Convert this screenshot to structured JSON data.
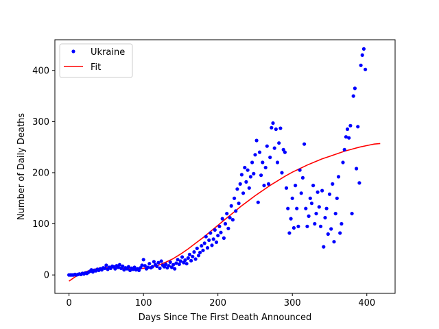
{
  "chart_data": {
    "type": "scatter",
    "title": "",
    "xlabel": "Days Since The First Death Announced",
    "ylabel": "Number of Daily Deaths",
    "xlim": [
      -19,
      438
    ],
    "ylim": [
      -36,
      460
    ],
    "xticks": [
      0,
      100,
      200,
      300,
      400
    ],
    "yticks": [
      0,
      100,
      200,
      300,
      400
    ],
    "grid": false,
    "legend_position": "top-left",
    "series": [
      {
        "name": "Ukraine",
        "kind": "scatter",
        "color": "#0000ff",
        "points": [
          [
            0,
            0
          ],
          [
            2,
            0
          ],
          [
            4,
            0
          ],
          [
            6,
            0
          ],
          [
            8,
            1
          ],
          [
            10,
            0
          ],
          [
            12,
            1
          ],
          [
            14,
            2
          ],
          [
            16,
            1
          ],
          [
            18,
            3
          ],
          [
            20,
            2
          ],
          [
            22,
            4
          ],
          [
            24,
            3
          ],
          [
            26,
            5
          ],
          [
            28,
            7
          ],
          [
            30,
            10
          ],
          [
            32,
            6
          ],
          [
            34,
            9
          ],
          [
            36,
            8
          ],
          [
            38,
            11
          ],
          [
            40,
            9
          ],
          [
            42,
            12
          ],
          [
            44,
            10
          ],
          [
            46,
            14
          ],
          [
            48,
            13
          ],
          [
            50,
            19
          ],
          [
            52,
            11
          ],
          [
            54,
            15
          ],
          [
            56,
            13
          ],
          [
            58,
            17
          ],
          [
            60,
            16
          ],
          [
            62,
            12
          ],
          [
            64,
            18
          ],
          [
            66,
            15
          ],
          [
            68,
            20
          ],
          [
            70,
            13
          ],
          [
            72,
            17
          ],
          [
            74,
            10
          ],
          [
            76,
            14
          ],
          [
            78,
            12
          ],
          [
            80,
            16
          ],
          [
            82,
            9
          ],
          [
            84,
            13
          ],
          [
            86,
            11
          ],
          [
            88,
            15
          ],
          [
            90,
            10
          ],
          [
            92,
            12
          ],
          [
            94,
            9
          ],
          [
            96,
            14
          ],
          [
            98,
            19
          ],
          [
            100,
            30
          ],
          [
            102,
            18
          ],
          [
            104,
            12
          ],
          [
            106,
            15
          ],
          [
            108,
            22
          ],
          [
            110,
            14
          ],
          [
            112,
            16
          ],
          [
            114,
            26
          ],
          [
            116,
            20
          ],
          [
            118,
            17
          ],
          [
            120,
            24
          ],
          [
            122,
            13
          ],
          [
            124,
            27
          ],
          [
            126,
            19
          ],
          [
            128,
            16
          ],
          [
            130,
            21
          ],
          [
            132,
            14
          ],
          [
            134,
            18
          ],
          [
            136,
            25
          ],
          [
            138,
            15
          ],
          [
            140,
            20
          ],
          [
            142,
            12
          ],
          [
            144,
            23
          ],
          [
            146,
            30
          ],
          [
            148,
            21
          ],
          [
            150,
            27
          ],
          [
            152,
            35
          ],
          [
            154,
            24
          ],
          [
            156,
            29
          ],
          [
            158,
            22
          ],
          [
            160,
            33
          ],
          [
            162,
            40
          ],
          [
            164,
            28
          ],
          [
            166,
            36
          ],
          [
            168,
            45
          ],
          [
            170,
            31
          ],
          [
            172,
            52
          ],
          [
            174,
            38
          ],
          [
            176,
            44
          ],
          [
            178,
            57
          ],
          [
            180,
            48
          ],
          [
            182,
            62
          ],
          [
            184,
            75
          ],
          [
            186,
            53
          ],
          [
            188,
            68
          ],
          [
            190,
            82
          ],
          [
            192,
            58
          ],
          [
            194,
            70
          ],
          [
            196,
            88
          ],
          [
            198,
            64
          ],
          [
            200,
            77
          ],
          [
            202,
            95
          ],
          [
            204,
            83
          ],
          [
            206,
            110
          ],
          [
            208,
            72
          ],
          [
            210,
            100
          ],
          [
            212,
            120
          ],
          [
            214,
            91
          ],
          [
            216,
            112
          ],
          [
            218,
            135
          ],
          [
            220,
            108
          ],
          [
            222,
            150
          ],
          [
            224,
            125
          ],
          [
            226,
            168
          ],
          [
            228,
            140
          ],
          [
            230,
            178
          ],
          [
            232,
            196
          ],
          [
            234,
            160
          ],
          [
            236,
            210
          ],
          [
            238,
            182
          ],
          [
            240,
            205
          ],
          [
            242,
            170
          ],
          [
            244,
            192
          ],
          [
            246,
            220
          ],
          [
            248,
            198
          ],
          [
            250,
            235
          ],
          [
            252,
            263
          ],
          [
            254,
            142
          ],
          [
            256,
            240
          ],
          [
            258,
            195
          ],
          [
            260,
            220
          ],
          [
            262,
            175
          ],
          [
            264,
            210
          ],
          [
            266,
            252
          ],
          [
            268,
            178
          ],
          [
            270,
            230
          ],
          [
            272,
            288
          ],
          [
            274,
            297
          ],
          [
            276,
            248
          ],
          [
            278,
            285
          ],
          [
            280,
            220
          ],
          [
            282,
            258
          ],
          [
            284,
            287
          ],
          [
            286,
            200
          ],
          [
            288,
            245
          ],
          [
            290,
            240
          ],
          [
            292,
            170
          ],
          [
            294,
            130
          ],
          [
            296,
            82
          ],
          [
            298,
            110
          ],
          [
            300,
            150
          ],
          [
            302,
            92
          ],
          [
            304,
            175
          ],
          [
            306,
            130
          ],
          [
            308,
            95
          ],
          [
            310,
            205
          ],
          [
            312,
            160
          ],
          [
            314,
            190
          ],
          [
            316,
            256
          ],
          [
            318,
            130
          ],
          [
            320,
            95
          ],
          [
            322,
            115
          ],
          [
            324,
            150
          ],
          [
            326,
            140
          ],
          [
            328,
            175
          ],
          [
            330,
            100
          ],
          [
            332,
            120
          ],
          [
            334,
            162
          ],
          [
            336,
            133
          ],
          [
            338,
            95
          ],
          [
            340,
            165
          ],
          [
            342,
            55
          ],
          [
            344,
            112
          ],
          [
            346,
            130
          ],
          [
            348,
            80
          ],
          [
            350,
            158
          ],
          [
            352,
            90
          ],
          [
            354,
            178
          ],
          [
            356,
            65
          ],
          [
            358,
            120
          ],
          [
            360,
            150
          ],
          [
            362,
            192
          ],
          [
            364,
            82
          ],
          [
            366,
            100
          ],
          [
            368,
            220
          ],
          [
            370,
            245
          ],
          [
            372,
            270
          ],
          [
            374,
            285
          ],
          [
            376,
            268
          ],
          [
            378,
            292
          ],
          [
            380,
            120
          ],
          [
            382,
            350
          ],
          [
            384,
            365
          ],
          [
            386,
            208
          ],
          [
            388,
            290
          ],
          [
            390,
            180
          ],
          [
            392,
            410
          ],
          [
            394,
            430
          ],
          [
            396,
            442
          ],
          [
            398,
            402
          ]
        ]
      },
      {
        "name": "Fit",
        "kind": "line",
        "color": "#ff0000",
        "points": [
          [
            0,
            -12
          ],
          [
            10,
            -2
          ],
          [
            20,
            5
          ],
          [
            30,
            10
          ],
          [
            40,
            13
          ],
          [
            50,
            14
          ],
          [
            60,
            14
          ],
          [
            70,
            13
          ],
          [
            80,
            12
          ],
          [
            90,
            12
          ],
          [
            100,
            13
          ],
          [
            110,
            15
          ],
          [
            120,
            19
          ],
          [
            130,
            25
          ],
          [
            140,
            32
          ],
          [
            150,
            41
          ],
          [
            160,
            51
          ],
          [
            170,
            62
          ],
          [
            180,
            73
          ],
          [
            190,
            85
          ],
          [
            200,
            97
          ],
          [
            210,
            109
          ],
          [
            220,
            121
          ],
          [
            230,
            133
          ],
          [
            240,
            144
          ],
          [
            250,
            155
          ],
          [
            260,
            165
          ],
          [
            270,
            175
          ],
          [
            280,
            184
          ],
          [
            290,
            193
          ],
          [
            300,
            201
          ],
          [
            310,
            208
          ],
          [
            320,
            215
          ],
          [
            330,
            221
          ],
          [
            340,
            227
          ],
          [
            350,
            232
          ],
          [
            360,
            237
          ],
          [
            370,
            242
          ],
          [
            380,
            246
          ],
          [
            390,
            250
          ],
          [
            400,
            253
          ],
          [
            410,
            256
          ],
          [
            418,
            257
          ]
        ]
      }
    ]
  }
}
